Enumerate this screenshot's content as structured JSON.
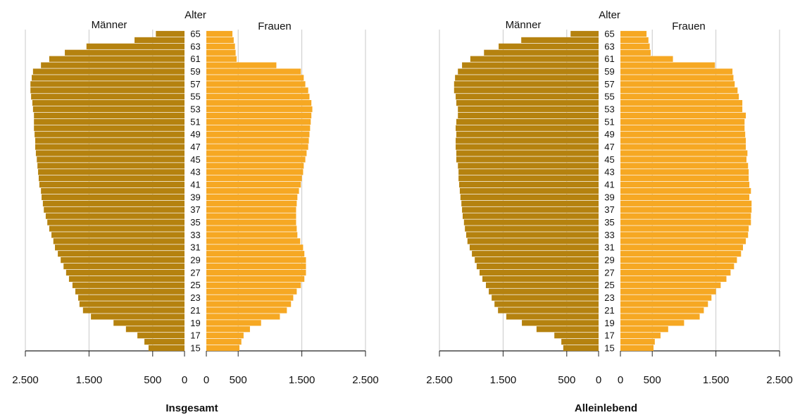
{
  "chart_data": [
    {
      "type": "pyramid",
      "title": "Insgesamt",
      "center_label": "Alter",
      "categories": [
        65,
        null,
        63,
        null,
        61,
        null,
        59,
        null,
        57,
        null,
        55,
        null,
        53,
        null,
        51,
        null,
        49,
        null,
        47,
        null,
        45,
        null,
        43,
        null,
        41,
        null,
        39,
        null,
        37,
        null,
        35,
        null,
        33,
        null,
        31,
        null,
        29,
        null,
        27,
        null,
        25,
        null,
        23,
        null,
        21,
        null,
        19,
        null,
        17,
        null,
        15
      ],
      "series": [
        {
          "name": "Männer",
          "color": "#b5820f",
          "values": [
            450,
            785,
            1540,
            1880,
            2125,
            2255,
            2380,
            2400,
            2420,
            2420,
            2410,
            2390,
            2380,
            2365,
            2365,
            2365,
            2355,
            2345,
            2345,
            2335,
            2320,
            2310,
            2300,
            2290,
            2280,
            2255,
            2245,
            2225,
            2210,
            2180,
            2155,
            2125,
            2090,
            2060,
            2035,
            1990,
            1945,
            1900,
            1860,
            1815,
            1760,
            1715,
            1670,
            1650,
            1595,
            1470,
            1115,
            920,
            740,
            630,
            565
          ]
        },
        {
          "name": "Frauen",
          "color": "#f6a823",
          "values": [
            410,
            430,
            450,
            460,
            475,
            1100,
            1485,
            1530,
            1555,
            1600,
            1620,
            1650,
            1665,
            1650,
            1640,
            1630,
            1620,
            1610,
            1600,
            1575,
            1555,
            1530,
            1520,
            1500,
            1485,
            1455,
            1430,
            1420,
            1410,
            1410,
            1410,
            1420,
            1430,
            1475,
            1520,
            1540,
            1565,
            1565,
            1565,
            1540,
            1485,
            1420,
            1365,
            1330,
            1265,
            1155,
            860,
            685,
            585,
            550,
            520
          ]
        }
      ],
      "xlim": [
        0,
        2500
      ],
      "xticks": [
        {
          "value": 2500,
          "label": "2.500"
        },
        {
          "value": 1500,
          "label": "1.500"
        },
        500,
        0
      ],
      "grid": true
    },
    {
      "type": "pyramid",
      "title": "Alleinlebend",
      "center_label": "Alter",
      "categories": [
        65,
        null,
        63,
        null,
        61,
        null,
        59,
        null,
        57,
        null,
        55,
        null,
        53,
        null,
        51,
        null,
        49,
        null,
        47,
        null,
        45,
        null,
        43,
        null,
        41,
        null,
        39,
        null,
        37,
        null,
        35,
        null,
        33,
        null,
        31,
        null,
        29,
        null,
        27,
        null,
        25,
        null,
        23,
        null,
        21,
        null,
        19,
        null,
        17,
        null,
        15
      ],
      "series": [
        {
          "name": "Männer",
          "color": "#b5820f",
          "values": [
            440,
            1215,
            1570,
            1800,
            2015,
            2145,
            2210,
            2255,
            2270,
            2270,
            2245,
            2235,
            2210,
            2210,
            2235,
            2245,
            2235,
            2245,
            2245,
            2235,
            2235,
            2210,
            2200,
            2200,
            2190,
            2180,
            2170,
            2155,
            2145,
            2135,
            2115,
            2100,
            2080,
            2060,
            2025,
            1990,
            1945,
            1915,
            1870,
            1825,
            1770,
            1725,
            1680,
            1635,
            1580,
            1450,
            1205,
            975,
            695,
            585,
            555
          ]
        },
        {
          "name": "Frauen",
          "color": "#f6a823",
          "values": [
            410,
            440,
            460,
            475,
            825,
            1485,
            1760,
            1775,
            1795,
            1840,
            1860,
            1915,
            1915,
            1970,
            1950,
            1950,
            1960,
            1970,
            1970,
            1995,
            1980,
            2005,
            2015,
            2015,
            2025,
            2050,
            2025,
            2060,
            2060,
            2050,
            2050,
            2015,
            2005,
            1970,
            1925,
            1895,
            1830,
            1785,
            1730,
            1665,
            1575,
            1500,
            1430,
            1375,
            1310,
            1245,
            1000,
            750,
            630,
            540,
            520
          ]
        }
      ],
      "xlim": [
        0,
        2500
      ],
      "xticks": [
        {
          "value": 2500,
          "label": "2.500"
        },
        {
          "value": 1500,
          "label": "1.500"
        },
        500,
        0
      ],
      "grid": true
    }
  ]
}
